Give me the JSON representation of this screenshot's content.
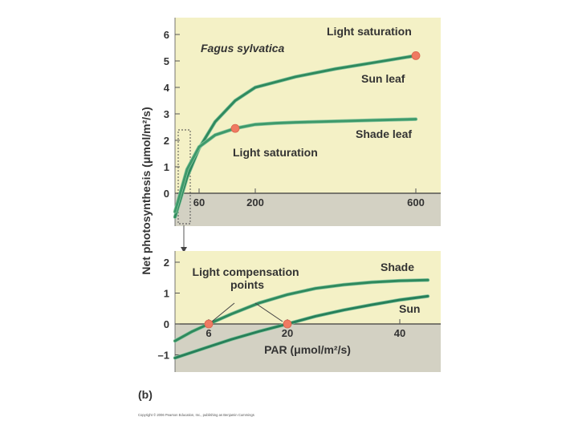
{
  "figure": {
    "panel_label": "(b)",
    "y_axis_label": "Net photosynthesis (μmol/m²/s)",
    "copyright": "Copyright © 2006 Pearson Education, Inc., publishing as Benjamin Cummings"
  },
  "chart_data": [
    {
      "type": "line",
      "title": "Fagus sylvatica",
      "xlabel": "",
      "ylabel": "Net photosynthesis (μmol/m²/s)",
      "xticks": [
        "60",
        "200",
        "600"
      ],
      "yticks": [
        "0",
        "1",
        "2",
        "3",
        "4",
        "5",
        "6"
      ],
      "xlim": [
        0,
        600
      ],
      "ylim": [
        -1.2,
        6.5
      ],
      "grid": false,
      "series": [
        {
          "name": "Sun leaf",
          "color": "#2f8a5e",
          "x": [
            0,
            30,
            60,
            100,
            150,
            200,
            250,
            300,
            400,
            500,
            600
          ],
          "y": [
            -0.9,
            0.6,
            1.7,
            2.7,
            3.5,
            4.0,
            4.2,
            4.4,
            4.7,
            4.95,
            5.2
          ]
        },
        {
          "name": "Shade leaf",
          "color": "#3e9a6b",
          "x": [
            0,
            30,
            60,
            100,
            150,
            200,
            250,
            300,
            400,
            500,
            600
          ],
          "y": [
            -0.7,
            0.9,
            1.75,
            2.2,
            2.45,
            2.6,
            2.65,
            2.68,
            2.72,
            2.76,
            2.8
          ]
        }
      ],
      "points": [
        {
          "label": "Light saturation",
          "x": 600,
          "y": 5.2
        },
        {
          "label": "Light saturation",
          "x": 150,
          "y": 2.45
        }
      ]
    },
    {
      "type": "line",
      "title": "",
      "xlabel": "PAR (μmol/m²/s)",
      "ylabel": "",
      "xticks": [
        "6",
        "20",
        "40"
      ],
      "yticks": [
        "–1",
        "0",
        "1",
        "2"
      ],
      "xlim": [
        0,
        45
      ],
      "ylim": [
        -1.2,
        2.3
      ],
      "grid": false,
      "series": [
        {
          "name": "Shade",
          "color": "#2f8a5e",
          "x": [
            0,
            3,
            6,
            10,
            15,
            20,
            25,
            30,
            35,
            40,
            45
          ],
          "y": [
            -0.55,
            -0.25,
            0.0,
            0.32,
            0.68,
            0.95,
            1.15,
            1.27,
            1.35,
            1.4,
            1.42
          ]
        },
        {
          "name": "Sun",
          "color": "#27805a",
          "x": [
            0,
            5,
            10,
            15,
            20,
            25,
            30,
            35,
            40,
            45
          ],
          "y": [
            -1.1,
            -0.8,
            -0.5,
            -0.24,
            0.0,
            0.25,
            0.45,
            0.62,
            0.78,
            0.9
          ]
        }
      ],
      "points": [
        {
          "label": "Light compensation points",
          "x": 6,
          "y": 0
        },
        {
          "label": "Light compensation points",
          "x": 20,
          "y": 0
        }
      ]
    }
  ]
}
